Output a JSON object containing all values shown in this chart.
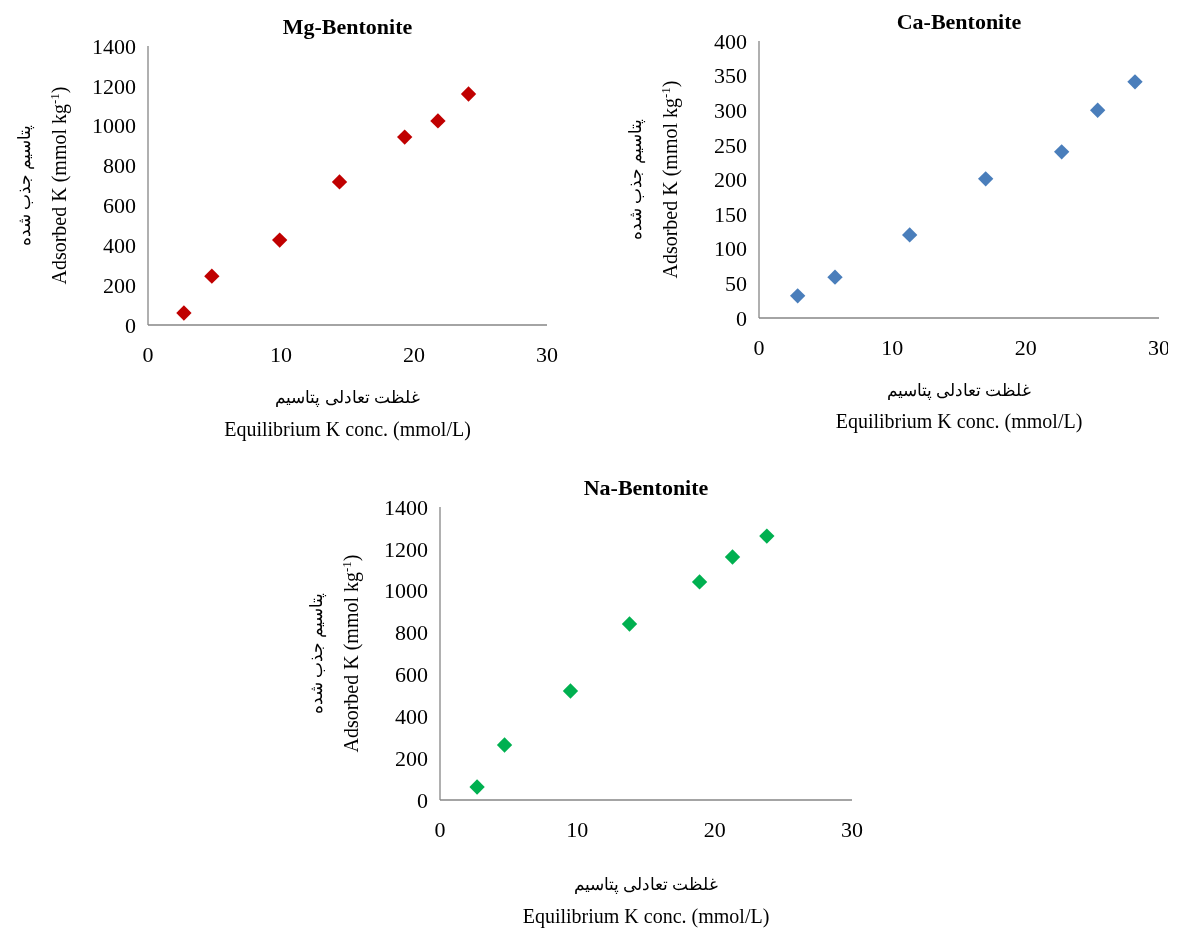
{
  "chart_data": [
    {
      "type": "scatter",
      "title": "Mg-Bentonite",
      "xlabel": "غلظت تعادلی پتاسیم\nEquilibrium K conc.  (mmol/L)",
      "ylabel": "پتاسیم جذب شده\nAdsorbed K (mmol kg$^{-1}$)",
      "xlim": [
        0,
        30
      ],
      "xticks": [
        0,
        10,
        20,
        30
      ],
      "ylim": [
        0,
        1400
      ],
      "yticks": [
        0,
        200,
        400,
        600,
        800,
        1000,
        1200,
        1400
      ],
      "marker": "diamond",
      "grid": false,
      "series": [
        {
          "color": "#c00000",
          "x": [
            2.7,
            4.8,
            9.9,
            14.4,
            19.3,
            21.8,
            24.1
          ],
          "values": [
            60,
            245,
            426,
            718,
            943,
            1024,
            1159
          ]
        }
      ]
    },
    {
      "type": "scatter",
      "title": "Ca-Bentonite",
      "xlabel": "غلظت تعادلی پتاسیم\nEquilibrium K conc.  (mmol/L)",
      "ylabel": "پتاسیم جذب شده\nAdsorbed K (mmol kg$^{-1}$)",
      "xlim": [
        0,
        30
      ],
      "xticks": [
        0,
        10,
        20,
        30
      ],
      "ylim": [
        0,
        400
      ],
      "yticks": [
        0,
        50,
        100,
        150,
        200,
        250,
        300,
        350,
        400
      ],
      "marker": "diamond",
      "grid": false,
      "series": [
        {
          "color": "#4a7ebb",
          "x": [
            2.9,
            5.7,
            11.3,
            17.0,
            22.7,
            25.4,
            28.2
          ],
          "values": [
            32,
            59,
            120,
            201,
            240,
            300,
            341
          ]
        }
      ]
    },
    {
      "type": "scatter",
      "title": "Na-Bentonite",
      "xlabel": "غلظت تعادلی پتاسیم\nEquilibrium K conc.  (mmol/L)",
      "ylabel": "پتاسیم جذب شده\nAdsorbed K (mmol kg$^{-1}$)",
      "xlim": [
        0,
        30
      ],
      "xticks": [
        0,
        10,
        20,
        30
      ],
      "ylim": [
        0,
        1400
      ],
      "yticks": [
        0,
        200,
        400,
        600,
        800,
        1000,
        1200,
        1400
      ],
      "marker": "diamond",
      "grid": false,
      "series": [
        {
          "color": "#00b050",
          "x": [
            2.7,
            4.7,
            9.5,
            13.8,
            18.9,
            21.3,
            23.8
          ],
          "values": [
            62,
            263,
            521,
            841,
            1042,
            1161,
            1261
          ]
        }
      ]
    }
  ]
}
